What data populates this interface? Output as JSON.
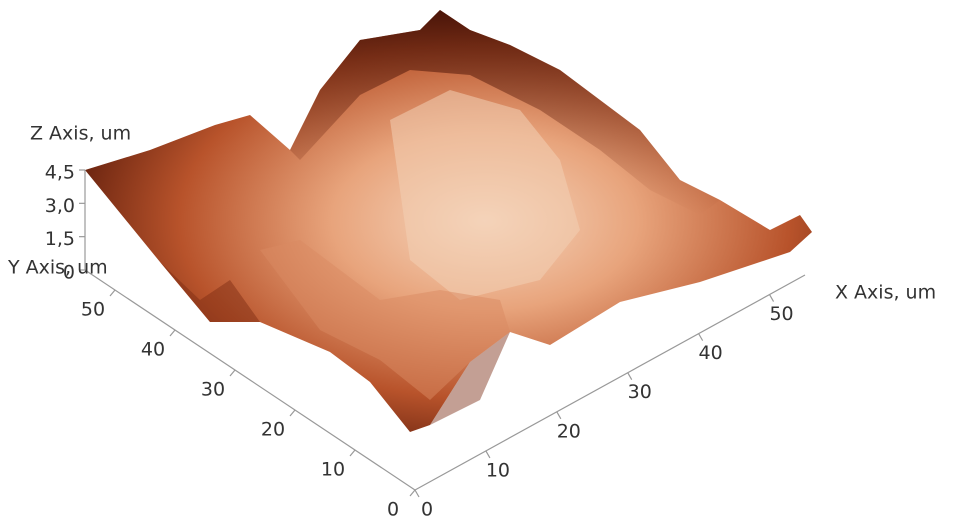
{
  "chart_data": {
    "type": "surface",
    "x_label": "X Axis, um",
    "y_label": "Y Axis, um",
    "z_label": "Z Axis, um",
    "xlim": [
      0,
      55
    ],
    "xticks": [
      0,
      10,
      20,
      30,
      40,
      50
    ],
    "ylim": [
      0,
      55
    ],
    "yticks": [
      0,
      10,
      20,
      30,
      40,
      50
    ],
    "zlim": [
      0,
      4.5
    ],
    "zticks": [
      0,
      {
        "value": 1.5,
        "label": "1,5"
      },
      {
        "value": 3.0,
        "label": "3,0"
      },
      {
        "value": 4.5,
        "label": "4,5"
      }
    ]
  }
}
